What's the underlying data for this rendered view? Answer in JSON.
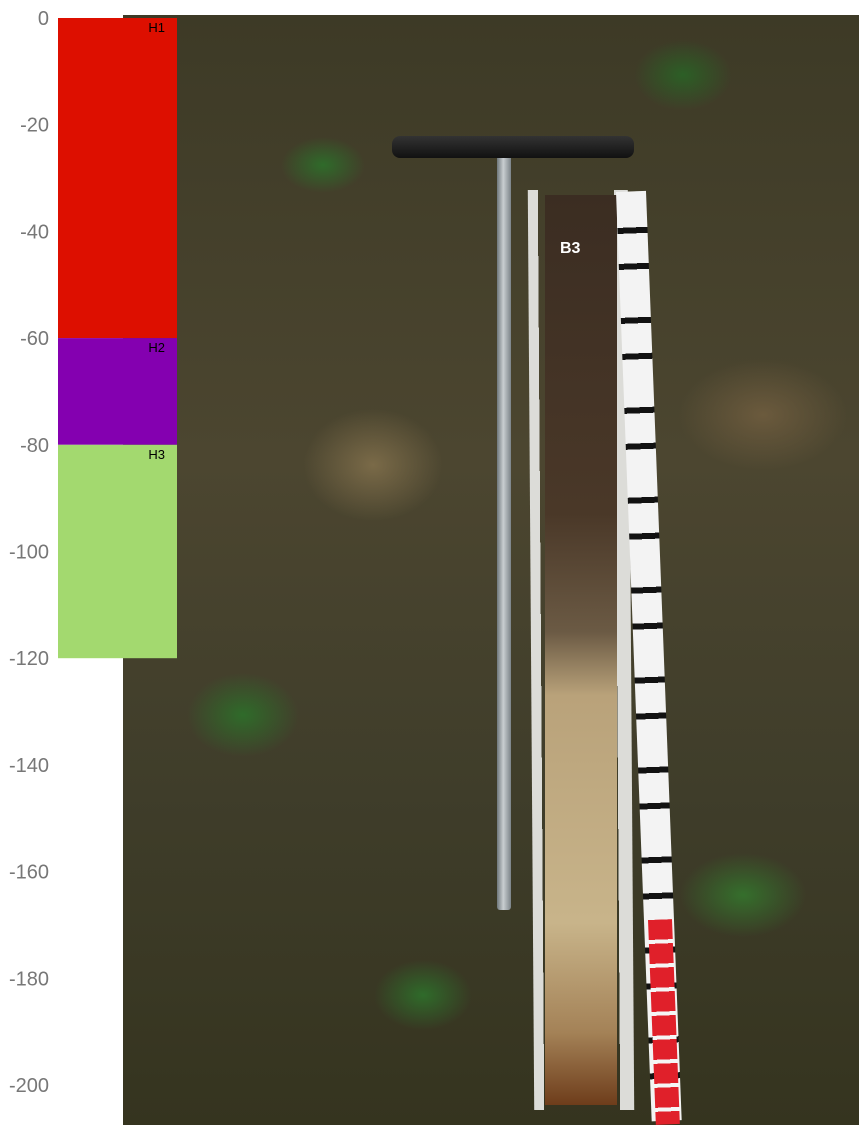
{
  "photo": {
    "core_label": "B3"
  },
  "chart_data": {
    "type": "bar",
    "orientation": "vertical-stacked",
    "ylim": [
      -200,
      0
    ],
    "yticks": [
      0,
      -20,
      -40,
      -60,
      -80,
      -100,
      -120,
      -140,
      -160,
      -180,
      -200
    ],
    "layers": [
      {
        "name": "H1",
        "top": 0,
        "bottom": -60,
        "color": "#dd0f00"
      },
      {
        "name": "H2",
        "top": -60,
        "bottom": -80,
        "color": "#8400b0"
      },
      {
        "name": "H3",
        "top": -80,
        "bottom": -120,
        "color": "#a3d96f"
      }
    ],
    "title": "",
    "xlabel": "",
    "ylabel": ""
  }
}
